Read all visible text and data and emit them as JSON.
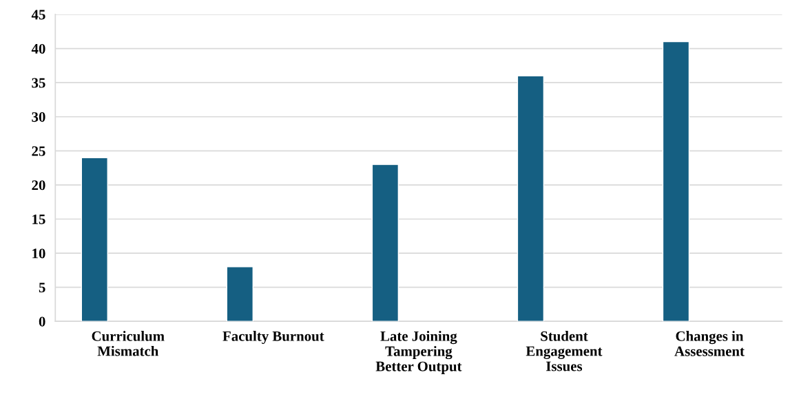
{
  "chart_data": {
    "type": "bar",
    "categories": [
      "Curriculum Mismatch",
      "Faculty Burnout",
      "Late Joining Tampering Better Output",
      "Student Engagement Issues",
      "Changes in Assessment"
    ],
    "values": [
      24,
      8,
      23,
      36,
      41
    ],
    "color": "#155f82",
    "ylim": [
      0,
      45
    ],
    "yticks": [
      0,
      5,
      10,
      15,
      20,
      25,
      30,
      35,
      40,
      45
    ],
    "grid": "y"
  }
}
